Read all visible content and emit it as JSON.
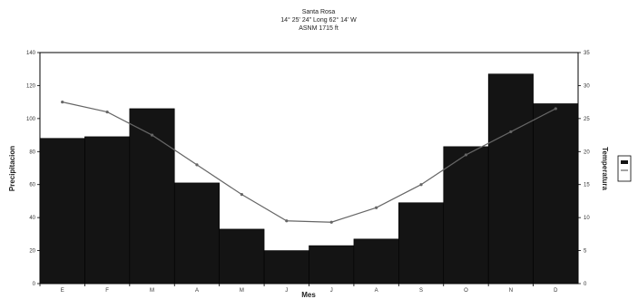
{
  "chart_data": {
    "type": "bar+line",
    "title_lines": [
      "Santa Rosa",
      "14° 25' 24\" Long 62° 14' W",
      "ASNM 1715 ft"
    ],
    "xlabel": "Mes",
    "ylabel_left": "Precipitacion",
    "ylabel_right": "Temperatura",
    "categories": [
      "E",
      "F",
      "M",
      "A",
      "M",
      "J",
      "J",
      "A",
      "S",
      "O",
      "N",
      "D"
    ],
    "ylim_left": [
      0,
      140
    ],
    "yticks_left": [
      "0",
      "20",
      "40",
      "60",
      "80",
      "100",
      "120",
      "140"
    ],
    "ylim_right": [
      0,
      35
    ],
    "yticks_right": [
      "0",
      "5",
      "10",
      "15",
      "20",
      "25",
      "30",
      "35"
    ],
    "series": [
      {
        "name": "",
        "kind": "bar",
        "axis": "left",
        "values": [
          88,
          89,
          106,
          61,
          33,
          20,
          23,
          27,
          49,
          83,
          127,
          109
        ]
      },
      {
        "name": "",
        "kind": "line",
        "axis": "right",
        "values": [
          27.5,
          26.0,
          22.5,
          18.0,
          13.5,
          9.5,
          9.3,
          11.5,
          15.0,
          19.5,
          23.0,
          26.5
        ]
      }
    ],
    "grid": false,
    "legend": "right",
    "colors": {
      "bar": "#141414",
      "line": "#666666"
    }
  }
}
